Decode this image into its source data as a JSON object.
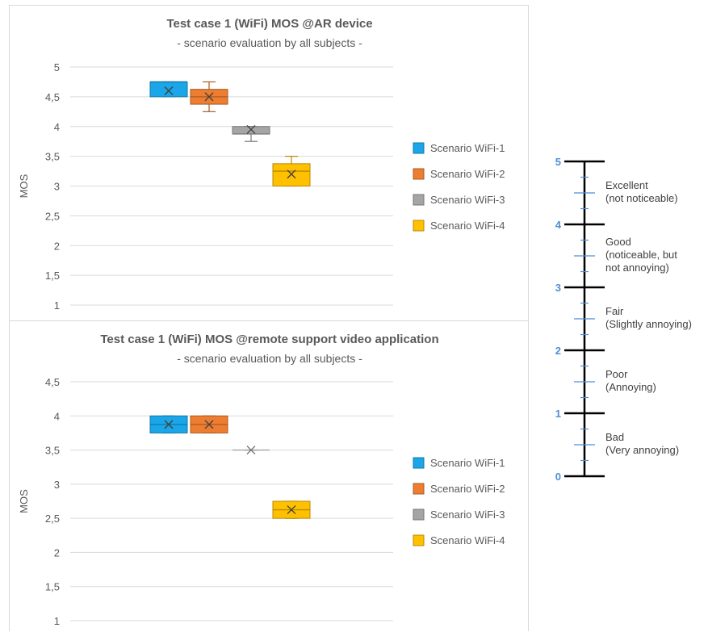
{
  "colors": {
    "wifi1": "#1aa6e8",
    "wifi2": "#ed7d31",
    "wifi3": "#a5a5a5",
    "wifi4": "#ffc000",
    "grid": "#d9d9d9",
    "axis_text": "#595959",
    "scale_blue": "#4f8fd3"
  },
  "chart_data": [
    {
      "type": "box",
      "title": "Test case 1 (WiFi) MOS @AR device",
      "subtitle": "- scenario evaluation by all subjects -",
      "ylabel": "MOS",
      "ylim": [
        1,
        5
      ],
      "yticks": [
        "5",
        "4,5",
        "4",
        "3,5",
        "3",
        "2,5",
        "2",
        "1,5",
        "1"
      ],
      "grid": true,
      "legend_position": "right",
      "series": [
        {
          "name": "Scenario WiFi-1",
          "color_key": "wifi1",
          "q1": 4.5,
          "q3": 4.75,
          "median": 4.75,
          "mean": 4.6,
          "whisker_low": 4.5,
          "whisker_high": 4.75
        },
        {
          "name": "Scenario WiFi-2",
          "color_key": "wifi2",
          "q1": 4.375,
          "q3": 4.625,
          "median": 4.5,
          "mean": 4.5,
          "whisker_low": 4.25,
          "whisker_high": 4.75
        },
        {
          "name": "Scenario WiFi-3",
          "color_key": "wifi3",
          "q1": 3.875,
          "q3": 4.0,
          "median": 3.875,
          "mean": 3.95,
          "whisker_low": 3.75,
          "whisker_high": 4.0
        },
        {
          "name": "Scenario WiFi-4",
          "color_key": "wifi4",
          "q1": 3.0,
          "q3": 3.375,
          "median": 3.25,
          "mean": 3.2,
          "whisker_low": 3.0,
          "whisker_high": 3.5
        }
      ]
    },
    {
      "type": "box",
      "title": "Test case 1 (WiFi) MOS @remote support video application",
      "subtitle": "- scenario evaluation by all subjects -",
      "ylabel": "MOS",
      "ylim": [
        1,
        4.5
      ],
      "yticks": [
        "4,5",
        "4",
        "3,5",
        "3",
        "2,5",
        "2",
        "1,5",
        "1"
      ],
      "grid": true,
      "legend_position": "right",
      "series": [
        {
          "name": "Scenario WiFi-1",
          "color_key": "wifi1",
          "q1": 3.75,
          "q3": 4.0,
          "median": 3.875,
          "mean": 3.875,
          "whisker_low": 3.75,
          "whisker_high": 4.0
        },
        {
          "name": "Scenario WiFi-2",
          "color_key": "wifi2",
          "q1": 3.75,
          "q3": 4.0,
          "median": 3.875,
          "mean": 3.875,
          "whisker_low": 3.75,
          "whisker_high": 4.0
        },
        {
          "name": "Scenario WiFi-3",
          "color_key": "wifi3",
          "q1": 3.5,
          "q3": 3.5,
          "median": 3.5,
          "mean": 3.5,
          "whisker_low": 3.5,
          "whisker_high": 3.5
        },
        {
          "name": "Scenario WiFi-4",
          "color_key": "wifi4",
          "q1": 2.5,
          "q3": 2.75,
          "median": 2.625,
          "mean": 2.625,
          "whisker_low": 2.5,
          "whisker_high": 2.75
        }
      ]
    }
  ],
  "mos_scale": {
    "ticks": [
      "5",
      "4",
      "3",
      "2",
      "1",
      "0"
    ],
    "ratings": [
      {
        "line1": "Excellent",
        "line2": "(not noticeable)",
        "line3": ""
      },
      {
        "line1": "Good",
        "line2": "(noticeable, but",
        "line3": "not annoying)"
      },
      {
        "line1": "Fair",
        "line2": "(Slightly annoying)",
        "line3": ""
      },
      {
        "line1": "Poor",
        "line2": "(Annoying)",
        "line3": ""
      },
      {
        "line1": "Bad",
        "line2": "(Very annoying)",
        "line3": ""
      }
    ]
  }
}
